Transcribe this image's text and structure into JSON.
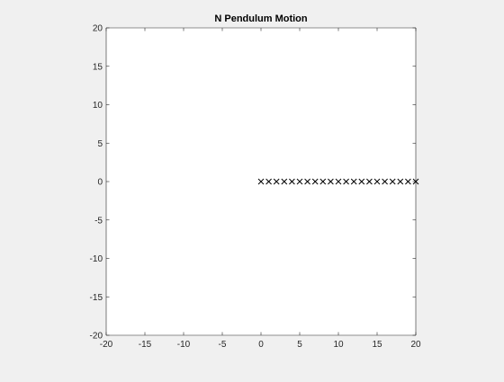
{
  "chart_data": {
    "type": "scatter",
    "title": "N Pendulum Motion",
    "xlabel": "",
    "ylabel": "",
    "xlim": [
      -20,
      20
    ],
    "ylim": [
      -20,
      20
    ],
    "xticks": [
      -20,
      -15,
      -10,
      -5,
      0,
      5,
      10,
      15,
      20
    ],
    "yticks": [
      -20,
      -15,
      -10,
      -5,
      0,
      5,
      10,
      15,
      20
    ],
    "grid": false,
    "marker": "x",
    "colors": {
      "figure_background": "#f0f0f0",
      "axes_background": "#ffffff",
      "axis_line": "#262626",
      "marker": "#000000",
      "text": "#262626"
    },
    "series": [
      {
        "x": [
          0,
          1,
          2,
          3,
          4,
          5,
          6,
          7,
          8,
          9,
          10,
          11,
          12,
          13,
          14,
          15,
          16,
          17,
          18,
          19,
          20
        ],
        "y": [
          0,
          0,
          0,
          0,
          0,
          0,
          0,
          0,
          0,
          0,
          0,
          0,
          0,
          0,
          0,
          0,
          0,
          0,
          0,
          0,
          0
        ]
      }
    ]
  }
}
